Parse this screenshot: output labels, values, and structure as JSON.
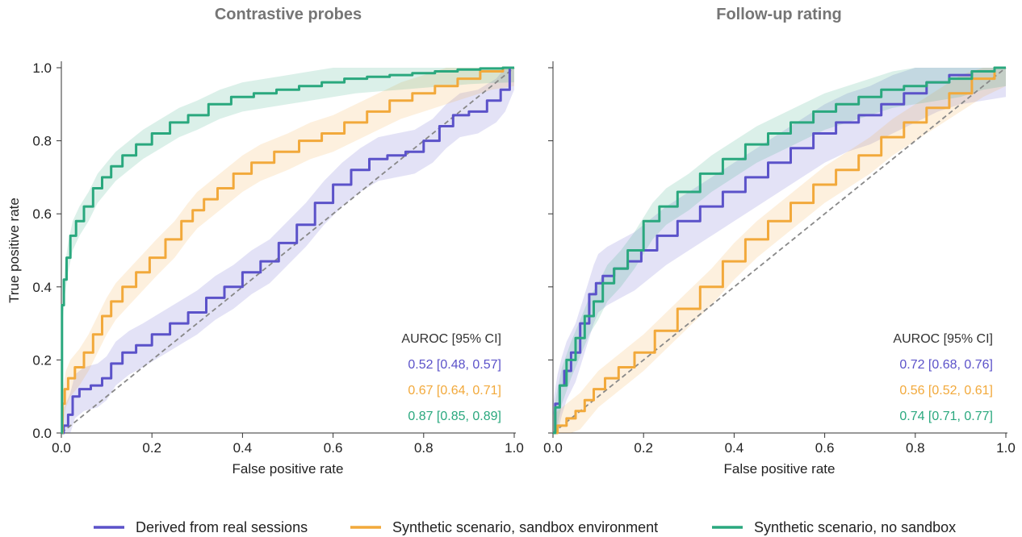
{
  "chart_data": [
    {
      "type": "line",
      "title": "Contrastive probes",
      "xlabel": "False positive rate",
      "ylabel": "True positive rate",
      "xlim": [
        0,
        1
      ],
      "ylim": [
        0,
        1
      ],
      "xticks": [
        "0.0",
        "0.2",
        "0.4",
        "0.6",
        "0.8",
        "1.0"
      ],
      "yticks": [
        "0.0",
        "0.2",
        "0.4",
        "0.6",
        "0.8",
        "1.0"
      ],
      "reference_line": "diagonal dashed",
      "auroc_header": "AUROC [95% CI]",
      "series": [
        {
          "key": "real",
          "auroc": "0.52 [0.48, 0.57]",
          "x": [
            0,
            0.01,
            0.02,
            0.03,
            0.05,
            0.08,
            0.1,
            0.12,
            0.15,
            0.18,
            0.22,
            0.26,
            0.3,
            0.34,
            0.38,
            0.42,
            0.46,
            0.5,
            0.54,
            0.58,
            0.62,
            0.66,
            0.7,
            0.74,
            0.78,
            0.82,
            0.85,
            0.88,
            0.92,
            0.96,
            0.98,
            1.0
          ],
          "y": [
            0,
            0.02,
            0.05,
            0.1,
            0.12,
            0.13,
            0.15,
            0.19,
            0.22,
            0.24,
            0.27,
            0.3,
            0.33,
            0.37,
            0.4,
            0.44,
            0.47,
            0.52,
            0.57,
            0.63,
            0.68,
            0.72,
            0.75,
            0.76,
            0.77,
            0.8,
            0.84,
            0.87,
            0.88,
            0.91,
            0.94,
            1.0
          ],
          "ci_width": 0.06
        },
        {
          "key": "sandbox",
          "auroc": "0.67 [0.64, 0.71]",
          "x": [
            0,
            0.005,
            0.01,
            0.02,
            0.04,
            0.06,
            0.08,
            0.1,
            0.12,
            0.15,
            0.18,
            0.21,
            0.25,
            0.28,
            0.3,
            0.33,
            0.36,
            0.4,
            0.44,
            0.5,
            0.55,
            0.6,
            0.65,
            0.7,
            0.75,
            0.8,
            0.85,
            0.9,
            0.95,
            1.0
          ],
          "y": [
            0,
            0.08,
            0.12,
            0.15,
            0.18,
            0.22,
            0.27,
            0.32,
            0.36,
            0.4,
            0.44,
            0.48,
            0.53,
            0.58,
            0.61,
            0.64,
            0.67,
            0.71,
            0.74,
            0.77,
            0.8,
            0.82,
            0.85,
            0.88,
            0.91,
            0.93,
            0.95,
            0.97,
            0.99,
            1.0
          ],
          "ci_width": 0.05
        },
        {
          "key": "nosandbox",
          "auroc": "0.87 [0.85, 0.89]",
          "x": [
            0,
            0.003,
            0.008,
            0.015,
            0.025,
            0.04,
            0.06,
            0.08,
            0.1,
            0.12,
            0.15,
            0.18,
            0.22,
            0.26,
            0.3,
            0.35,
            0.4,
            0.45,
            0.5,
            0.55,
            0.6,
            0.65,
            0.7,
            0.75,
            0.8,
            0.85,
            0.9,
            0.95,
            1.0
          ],
          "y": [
            0,
            0.35,
            0.42,
            0.48,
            0.54,
            0.58,
            0.62,
            0.67,
            0.7,
            0.73,
            0.76,
            0.79,
            0.82,
            0.85,
            0.87,
            0.9,
            0.92,
            0.93,
            0.94,
            0.95,
            0.96,
            0.97,
            0.975,
            0.98,
            0.985,
            0.99,
            0.995,
            0.998,
            1.0
          ],
          "ci_width": 0.04
        }
      ]
    },
    {
      "type": "line",
      "title": "Follow-up rating",
      "xlabel": "False positive rate",
      "ylabel": "",
      "xlim": [
        0,
        1
      ],
      "ylim": [
        0,
        1
      ],
      "xticks": [
        "0.0",
        "0.2",
        "0.4",
        "0.6",
        "0.8",
        "1.0"
      ],
      "reference_line": "diagonal dashed",
      "auroc_header": "AUROC [95% CI]",
      "series": [
        {
          "key": "real",
          "auroc": "0.72 [0.68, 0.76]",
          "x": [
            0,
            0.01,
            0.02,
            0.03,
            0.05,
            0.07,
            0.09,
            0.1,
            0.12,
            0.15,
            0.18,
            0.21,
            0.25,
            0.3,
            0.35,
            0.4,
            0.45,
            0.5,
            0.55,
            0.6,
            0.65,
            0.7,
            0.75,
            0.8,
            0.85,
            0.9,
            0.95,
            1.0
          ],
          "y": [
            0,
            0.08,
            0.13,
            0.17,
            0.22,
            0.3,
            0.38,
            0.41,
            0.43,
            0.45,
            0.47,
            0.5,
            0.54,
            0.58,
            0.62,
            0.66,
            0.7,
            0.74,
            0.78,
            0.82,
            0.85,
            0.87,
            0.9,
            0.93,
            0.96,
            0.98,
            0.99,
            1.0
          ],
          "ci_width": 0.08
        },
        {
          "key": "sandbox",
          "auroc": "0.56 [0.52, 0.61]",
          "x": [
            0,
            0.02,
            0.04,
            0.06,
            0.08,
            0.1,
            0.13,
            0.16,
            0.2,
            0.25,
            0.3,
            0.35,
            0.4,
            0.45,
            0.5,
            0.55,
            0.6,
            0.65,
            0.7,
            0.75,
            0.8,
            0.85,
            0.9,
            0.95,
            1.0
          ],
          "y": [
            0,
            0.02,
            0.04,
            0.06,
            0.09,
            0.12,
            0.15,
            0.18,
            0.22,
            0.28,
            0.34,
            0.4,
            0.47,
            0.53,
            0.58,
            0.63,
            0.68,
            0.72,
            0.76,
            0.81,
            0.85,
            0.89,
            0.93,
            0.97,
            1.0
          ],
          "ci_width": 0.05
        },
        {
          "key": "nosandbox",
          "auroc": "0.74 [0.71, 0.77]",
          "x": [
            0,
            0.01,
            0.02,
            0.04,
            0.06,
            0.08,
            0.1,
            0.12,
            0.15,
            0.18,
            0.22,
            0.25,
            0.3,
            0.35,
            0.4,
            0.45,
            0.5,
            0.55,
            0.6,
            0.65,
            0.7,
            0.75,
            0.8,
            0.85,
            0.9,
            0.95,
            1.0
          ],
          "y": [
            0,
            0.07,
            0.13,
            0.2,
            0.26,
            0.32,
            0.36,
            0.41,
            0.45,
            0.5,
            0.58,
            0.62,
            0.66,
            0.71,
            0.75,
            0.79,
            0.82,
            0.85,
            0.88,
            0.9,
            0.92,
            0.94,
            0.95,
            0.96,
            0.97,
            0.99,
            1.0
          ],
          "ci_width": 0.05
        }
      ]
    }
  ],
  "legend": [
    {
      "key": "real",
      "label": "Derived from real sessions",
      "color": "#5b52c9"
    },
    {
      "key": "sandbox",
      "label": "Synthetic scenario, sandbox environment",
      "color": "#f2a93b"
    },
    {
      "key": "nosandbox",
      "label": "Synthetic scenario, no sandbox",
      "color": "#2aa87e"
    }
  ],
  "colors": {
    "real": "#5b52c9",
    "sandbox": "#f2a93b",
    "nosandbox": "#2aa87e",
    "diagonal": "#888888",
    "title": "#757575"
  }
}
